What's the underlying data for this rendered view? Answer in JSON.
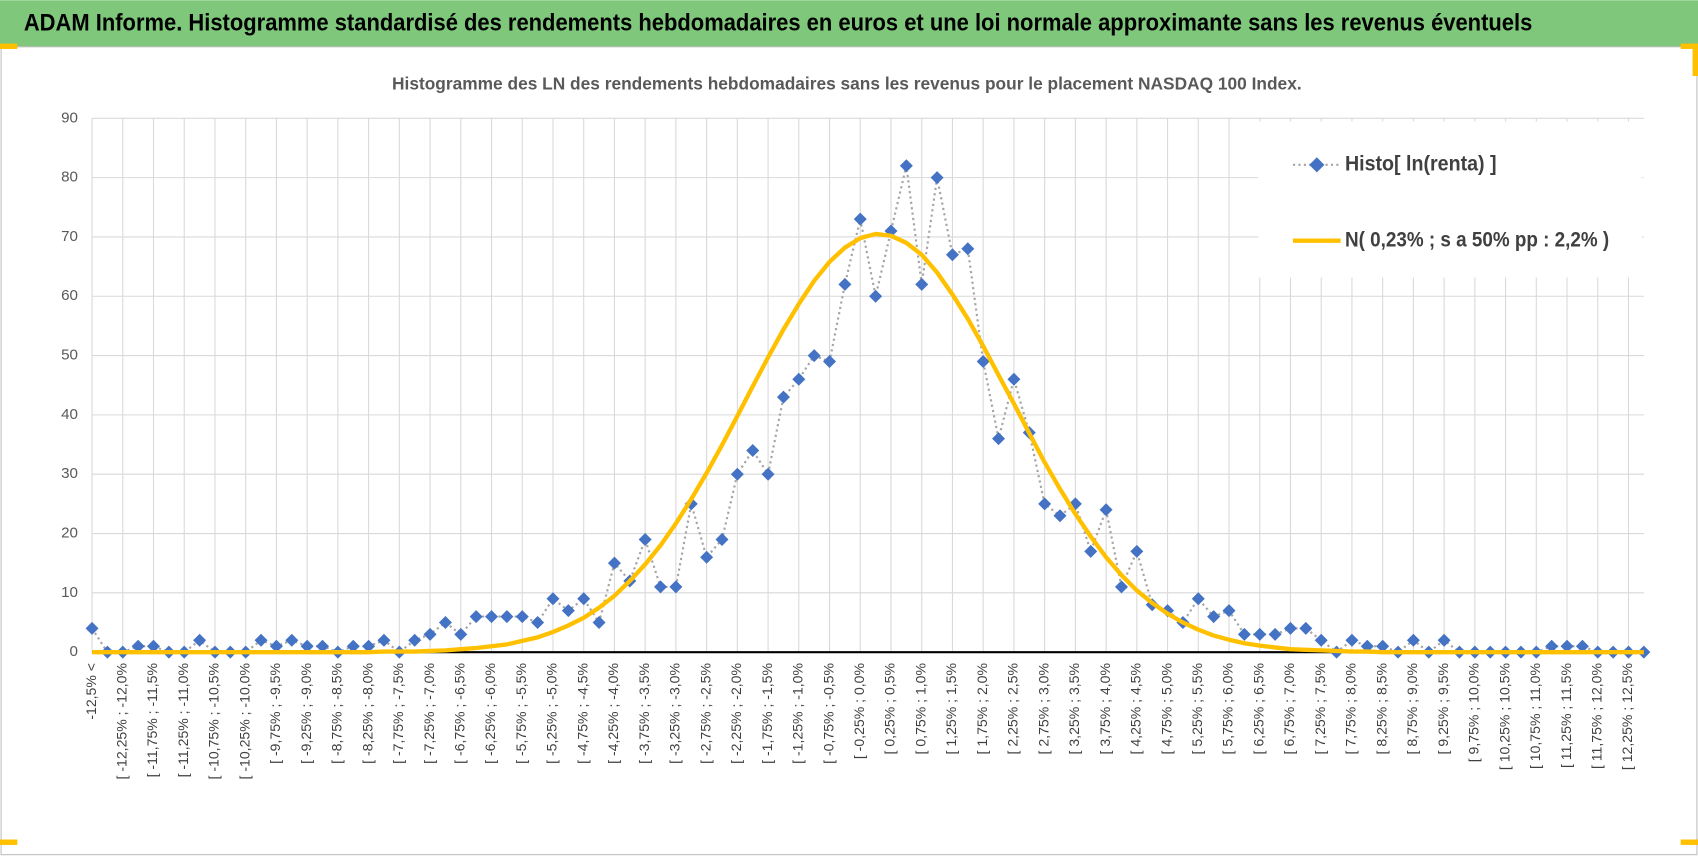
{
  "header": {
    "title": "ADAM Informe. Histogramme standardisé des rendements hebdomadaires en euros et une loi normale approximante sans les revenus éventuels"
  },
  "chart_data": {
    "type": "line",
    "title": "Histogramme  des LN des rendements hebdomadaires sans les revenus pour le placement NASDAQ 100 Index.",
    "categories": [
      "-12,5% <",
      null,
      "[ -12,25% ; -12,0%",
      null,
      "[ -11,75% ; -11,5%",
      null,
      "[ -11,25% ; -11,0%",
      null,
      "[ -10,75% ; -10,5%",
      null,
      "[ -10,25% ; -10,0%",
      null,
      "[ -9,75% ; -9,5%",
      null,
      "[ -9,25% ; -9,0%",
      null,
      "[ -8,75% ; -8,5%",
      null,
      "[ -8,25% ; -8,0%",
      null,
      "[ -7,75% ; -7,5%",
      null,
      "[ -7,25% ; -7,0%",
      null,
      "[ -6,75% ; -6,5%",
      null,
      "[ -6,25% ; -6,0%",
      null,
      "[ -5,75% ; -5,5%",
      null,
      "[ -5,25% ; -5,0%",
      null,
      "[ -4,75% ; -4,5%",
      null,
      "[ -4,25% ; -4,0%",
      null,
      "[ -3,75% ; -3,5%",
      null,
      "[ -3,25% ; -3,0%",
      null,
      "[ -2,75% ; -2,5%",
      null,
      "[ -2,25% ; -2,0%",
      null,
      "[ -1,75% ; -1,5%",
      null,
      "[ -1,25% ; -1,0%",
      null,
      "[ -0,75% ; -0,5%",
      null,
      "[ -0,25% ; 0,0%",
      null,
      "[ 0,25% ; 0,5%",
      null,
      "[ 0,75% ; 1,0%",
      null,
      "[ 1,25% ; 1,5%",
      null,
      "[ 1,75% ; 2,0%",
      null,
      "[ 2,25% ; 2,5%",
      null,
      "[ 2,75% ; 3,0%",
      null,
      "[ 3,25% ; 3,5%",
      null,
      "[ 3,75% ; 4,0%",
      null,
      "[ 4,25% ; 4,5%",
      null,
      "[ 4,75% ; 5,0%",
      null,
      "[ 5,25% ; 5,5%",
      null,
      "[ 5,75% ; 6,0%",
      null,
      "[ 6,25% ; 6,5%",
      null,
      "[ 6,75% ; 7,0%",
      null,
      "[ 7,25% ; 7,5%",
      null,
      "[ 7,75% ; 8,0%",
      null,
      "[ 8,25% ; 8,5%",
      null,
      "[ 8,75% ; 9,0%",
      null,
      "[ 9,25% ; 9,5%",
      null,
      "[ 9,75% ; 10,0%",
      null,
      "[ 10,25% ; 10,5%",
      null,
      "[ 10,75% ; 11,0%",
      null,
      "[ 11,25% ; 11,5%",
      null,
      "[ 11,75% ; 12,0%",
      null,
      "[ 12,25% ; 12,5%",
      null
    ],
    "series": [
      {
        "name": "Histo[ ln(renta) ]",
        "color": "#4472c4",
        "line_color": "#a5a5a5",
        "marker": "diamond",
        "line_style": "dotted",
        "values": [
          4,
          0,
          0,
          1,
          1,
          0,
          0,
          2,
          0,
          0,
          0,
          2,
          1,
          2,
          1,
          1,
          0,
          1,
          1,
          2,
          0,
          2,
          3,
          5,
          3,
          6,
          6,
          6,
          6,
          5,
          9,
          7,
          9,
          5,
          15,
          12,
          19,
          11,
          11,
          25,
          16,
          19,
          30,
          34,
          30,
          43,
          46,
          50,
          49,
          62,
          73,
          60,
          71,
          82,
          62,
          80,
          67,
          68,
          49,
          36,
          46,
          37,
          25,
          23,
          25,
          17,
          24,
          11,
          17,
          8,
          7,
          5,
          9,
          6,
          7,
          3,
          3,
          3,
          4,
          4,
          2,
          0,
          2,
          1,
          1,
          0,
          2,
          0,
          2,
          0,
          0,
          0,
          0,
          0,
          0,
          1,
          1,
          1,
          0,
          0,
          0,
          0
        ]
      },
      {
        "name": "N( 0,23% ; s a 50% pp : 2,2% )",
        "color": "#ffc000",
        "marker": "none",
        "line_style": "solid",
        "values": [
          0,
          0,
          0,
          0,
          0,
          0,
          0,
          0,
          0,
          0,
          0,
          0,
          0,
          0,
          0,
          0,
          0,
          0,
          0,
          0.1,
          0.1,
          0.1,
          0.2,
          0.3,
          0.5,
          0.7,
          1.0,
          1.3,
          1.9,
          2.5,
          3.4,
          4.5,
          5.8,
          7.5,
          9.5,
          12.0,
          14.8,
          18.0,
          21.7,
          25.8,
          30.2,
          34.9,
          39.8,
          44.8,
          49.7,
          54.4,
          58.7,
          62.6,
          65.8,
          68.2,
          69.8,
          70.5,
          70.2,
          69.0,
          67.0,
          64.0,
          60.3,
          56.2,
          51.6,
          46.7,
          41.9,
          36.9,
          32.0,
          27.5,
          23.3,
          19.5,
          16.0,
          13.0,
          10.4,
          8.3,
          6.5,
          5.0,
          3.8,
          2.8,
          2.1,
          1.5,
          1.1,
          0.8,
          0.5,
          0.4,
          0.3,
          0.2,
          0.1,
          0.1,
          0,
          0,
          0,
          0,
          0,
          0,
          0,
          0,
          0,
          0,
          0,
          0,
          0,
          0,
          0,
          0,
          0,
          0
        ]
      }
    ],
    "ylim": [
      0,
      90
    ],
    "yticks": [
      0,
      10,
      20,
      30,
      40,
      50,
      60,
      70,
      80,
      90
    ],
    "grid": true,
    "legend": "top-right"
  }
}
